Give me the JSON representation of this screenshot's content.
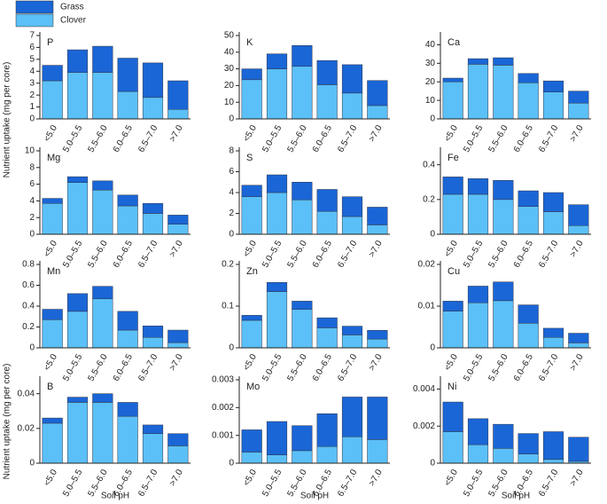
{
  "chart_data": [
    {
      "type": "bar",
      "stacked": true,
      "title": "P",
      "ylabel": "Nutrient uptake (mg per core)",
      "categories": [
        "<5.0",
        "5.0–5.5",
        "5.5–6.0",
        "6.0–6.5",
        "6.5–7.0",
        ">7.0"
      ],
      "series": [
        {
          "name": "Clover",
          "color": "#5bc0f8",
          "values": [
            3.2,
            3.9,
            3.9,
            2.3,
            1.8,
            0.8
          ]
        },
        {
          "name": "Grass",
          "color": "#1a66d6",
          "values": [
            1.3,
            1.9,
            2.2,
            2.8,
            2.9,
            2.4
          ]
        }
      ],
      "ylim": [
        0,
        7
      ],
      "yticks": [
        0,
        1,
        2,
        3,
        4,
        5,
        6,
        7
      ]
    },
    {
      "type": "bar",
      "stacked": true,
      "title": "K",
      "categories": [
        "<5.0",
        "5.0–5.5",
        "5.5–6.0",
        "6.0–6.5",
        "6.5–7.0",
        ">7.0"
      ],
      "series": [
        {
          "name": "Clover",
          "color": "#5bc0f8",
          "values": [
            23.5,
            30,
            31.5,
            20.5,
            15.5,
            8
          ]
        },
        {
          "name": "Grass",
          "color": "#1a66d6",
          "values": [
            6.5,
            9,
            12.5,
            14.5,
            17,
            15
          ]
        }
      ],
      "ylim": [
        0,
        50
      ],
      "yticks": [
        0,
        10,
        20,
        30,
        40,
        50
      ]
    },
    {
      "type": "bar",
      "stacked": true,
      "title": "Ca",
      "categories": [
        "<5.0",
        "5.0–5.5",
        "5.5–6.0",
        "6.0–6.5",
        "6.5–7.0",
        ">7.0"
      ],
      "series": [
        {
          "name": "Clover",
          "color": "#5bc0f8",
          "values": [
            20,
            29.5,
            29,
            19.5,
            14.5,
            8.5
          ]
        },
        {
          "name": "Grass",
          "color": "#1a66d6",
          "values": [
            2,
            3,
            4,
            5,
            6,
            6.5
          ]
        }
      ],
      "ylim": [
        0,
        45
      ],
      "yticks": [
        0,
        10,
        20,
        30,
        40
      ]
    },
    {
      "type": "bar",
      "stacked": true,
      "title": "Mg",
      "categories": [
        "<5.0",
        "5.0–5.5",
        "5.5–6.0",
        "6.0–6.5",
        "6.5–7.0",
        ">7.0"
      ],
      "series": [
        {
          "name": "Clover",
          "color": "#5bc0f8",
          "values": [
            3.7,
            6.2,
            5.3,
            3.4,
            2.5,
            1.2
          ]
        },
        {
          "name": "Grass",
          "color": "#1a66d6",
          "values": [
            0.6,
            0.7,
            1.1,
            1.3,
            1.2,
            1.1
          ]
        }
      ],
      "ylim": [
        0,
        10
      ],
      "yticks": [
        0,
        2,
        4,
        6,
        8,
        10
      ]
    },
    {
      "type": "bar",
      "stacked": true,
      "title": "S",
      "categories": [
        "<5.0",
        "5.0–5.5",
        "5.5–6.0",
        "6.0–6.5",
        "6.5–7.0",
        ">7.0"
      ],
      "series": [
        {
          "name": "Clover",
          "color": "#5bc0f8",
          "values": [
            3.6,
            4.0,
            3.3,
            2.2,
            1.7,
            0.9
          ]
        },
        {
          "name": "Grass",
          "color": "#1a66d6",
          "values": [
            1.1,
            1.7,
            1.7,
            2.1,
            1.9,
            1.7
          ]
        }
      ],
      "ylim": [
        0,
        8
      ],
      "yticks": [
        0,
        2,
        4,
        6,
        8
      ]
    },
    {
      "type": "bar",
      "stacked": true,
      "title": "Fe",
      "categories": [
        "<5.0",
        "5.0–5.5",
        "5.5–6.0",
        "6.0–6.5",
        "6.5–7.0",
        ">7.0"
      ],
      "series": [
        {
          "name": "Clover",
          "color": "#5bc0f8",
          "values": [
            0.23,
            0.23,
            0.2,
            0.16,
            0.13,
            0.05
          ]
        },
        {
          "name": "Grass",
          "color": "#1a66d6",
          "values": [
            0.1,
            0.09,
            0.11,
            0.09,
            0.11,
            0.12
          ]
        }
      ],
      "ylim": [
        0,
        0.48
      ],
      "yticks": [
        0,
        0.2,
        0.4
      ]
    },
    {
      "type": "bar",
      "stacked": true,
      "title": "Mn",
      "categories": [
        "<5.0",
        "5.0–5.5",
        "5.5–6.0",
        "6.0–6.5",
        "6.5–7.0",
        ">7.0"
      ],
      "series": [
        {
          "name": "Clover",
          "color": "#5bc0f8",
          "values": [
            0.27,
            0.35,
            0.47,
            0.17,
            0.1,
            0.05
          ]
        },
        {
          "name": "Grass",
          "color": "#1a66d6",
          "values": [
            0.1,
            0.17,
            0.12,
            0.18,
            0.11,
            0.12
          ]
        }
      ],
      "ylim": [
        0,
        0.8
      ],
      "yticks": [
        0,
        0.2,
        0.4,
        0.6,
        0.8
      ]
    },
    {
      "type": "bar",
      "stacked": true,
      "title": "Zn",
      "categories": [
        "<5.0",
        "5.0–5.5",
        "5.5–6.0",
        "6.0–6.5",
        "6.5–7.0",
        ">7.0"
      ],
      "series": [
        {
          "name": "Clover",
          "color": "#5bc0f8",
          "values": [
            0.066,
            0.135,
            0.092,
            0.048,
            0.031,
            0.021
          ]
        },
        {
          "name": "Grass",
          "color": "#1a66d6",
          "values": [
            0.012,
            0.022,
            0.02,
            0.024,
            0.021,
            0.021
          ]
        }
      ],
      "ylim": [
        0,
        0.2
      ],
      "yticks": [
        0,
        0.1,
        0.2
      ]
    },
    {
      "type": "bar",
      "stacked": true,
      "title": "Cu",
      "categories": [
        "<5.0",
        "5.0–5.5",
        "5.5–6.0",
        "6.0–6.5",
        "6.5–7.0",
        ">7.0"
      ],
      "series": [
        {
          "name": "Clover",
          "color": "#5bc0f8",
          "values": [
            0.0088,
            0.0108,
            0.0113,
            0.0059,
            0.0025,
            0.0012
          ]
        },
        {
          "name": "Grass",
          "color": "#1a66d6",
          "values": [
            0.0024,
            0.004,
            0.0045,
            0.0044,
            0.0022,
            0.0023
          ]
        }
      ],
      "ylim": [
        0,
        0.02
      ],
      "yticks": [
        0,
        0.01,
        0.02
      ]
    },
    {
      "type": "bar",
      "stacked": true,
      "title": "B",
      "ylabel": "Nutrient uptake (mg per core)",
      "xlabel": "Soil pH",
      "categories": [
        "<5.0",
        "5.0–5.5",
        "5.5–6.0",
        "6.0–6.5",
        "6.5–7.0",
        ">7.0"
      ],
      "series": [
        {
          "name": "Clover",
          "color": "#5bc0f8",
          "values": [
            0.023,
            0.035,
            0.035,
            0.027,
            0.017,
            0.01
          ]
        },
        {
          "name": "Grass",
          "color": "#1a66d6",
          "values": [
            0.003,
            0.003,
            0.005,
            0.008,
            0.005,
            0.007
          ]
        }
      ],
      "ylim": [
        0,
        0.048
      ],
      "yticks": [
        0,
        0.02,
        0.04
      ]
    },
    {
      "type": "bar",
      "stacked": true,
      "title": "Mo",
      "xlabel": "Soil pH",
      "categories": [
        "<5.0",
        "5.0–5.5",
        "5.5–6.0",
        "6.0–6.5",
        "6.5–7.0",
        ">7.0"
      ],
      "series": [
        {
          "name": "Clover",
          "color": "#5bc0f8",
          "values": [
            0.0004,
            0.0003,
            0.00045,
            0.0006,
            0.00095,
            0.00085
          ]
        },
        {
          "name": "Grass",
          "color": "#1a66d6",
          "values": [
            0.0008,
            0.0012,
            0.0009,
            0.00118,
            0.00143,
            0.00153
          ]
        }
      ],
      "ylim": [
        0,
        0.003
      ],
      "yticks": [
        0,
        0.001,
        0.002,
        0.003
      ]
    },
    {
      "type": "bar",
      "stacked": true,
      "title": "Ni",
      "xlabel": "Soil pH",
      "categories": [
        "<5.0",
        "5.0–5.5",
        "5.5–6.0",
        "6.0–6.5",
        "6.5–7.0",
        ">7.0"
      ],
      "series": [
        {
          "name": "Clover",
          "color": "#5bc0f8",
          "values": [
            0.0017,
            0.001,
            0.0008,
            0.0005,
            0.0002,
            0.0001
          ]
        },
        {
          "name": "Grass",
          "color": "#1a66d6",
          "values": [
            0.0016,
            0.0014,
            0.0013,
            0.0011,
            0.0015,
            0.0013
          ]
        }
      ],
      "ylim": [
        0,
        0.0045
      ],
      "yticks": [
        0,
        0.002,
        0.004
      ]
    }
  ]
}
